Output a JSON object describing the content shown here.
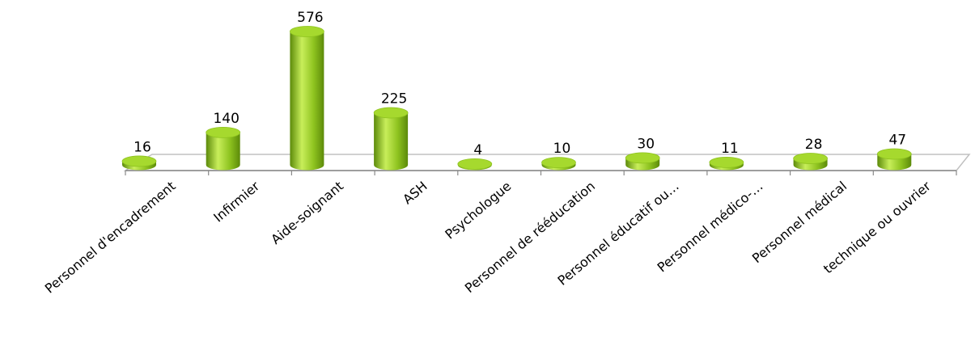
{
  "chart_data": {
    "type": "bar",
    "categories": [
      "Personnel d'encadrement",
      "Infirmier",
      "Aide-soignant",
      "ASH",
      "Psychologue",
      "Personnel de rééducation",
      "Personnel éducatif ou…",
      "Personnel médico-…",
      "Personnel médical",
      "technique ou ouvrier"
    ],
    "values": [
      16,
      140,
      576,
      225,
      4,
      10,
      30,
      11,
      28,
      47
    ],
    "title": "",
    "xlabel": "",
    "ylabel": "",
    "ylim": [
      0,
      576
    ],
    "grid": false,
    "legend": "none",
    "style": "3d-cylinder",
    "colors": {
      "bar_light": "#c8ee5a",
      "bar_mid": "#8ec31f",
      "bar_dark": "#5c8a0a",
      "bar_top": "#a6d92e",
      "floor_stroke": "#c0c0c0",
      "axis_stroke": "#888888"
    }
  }
}
